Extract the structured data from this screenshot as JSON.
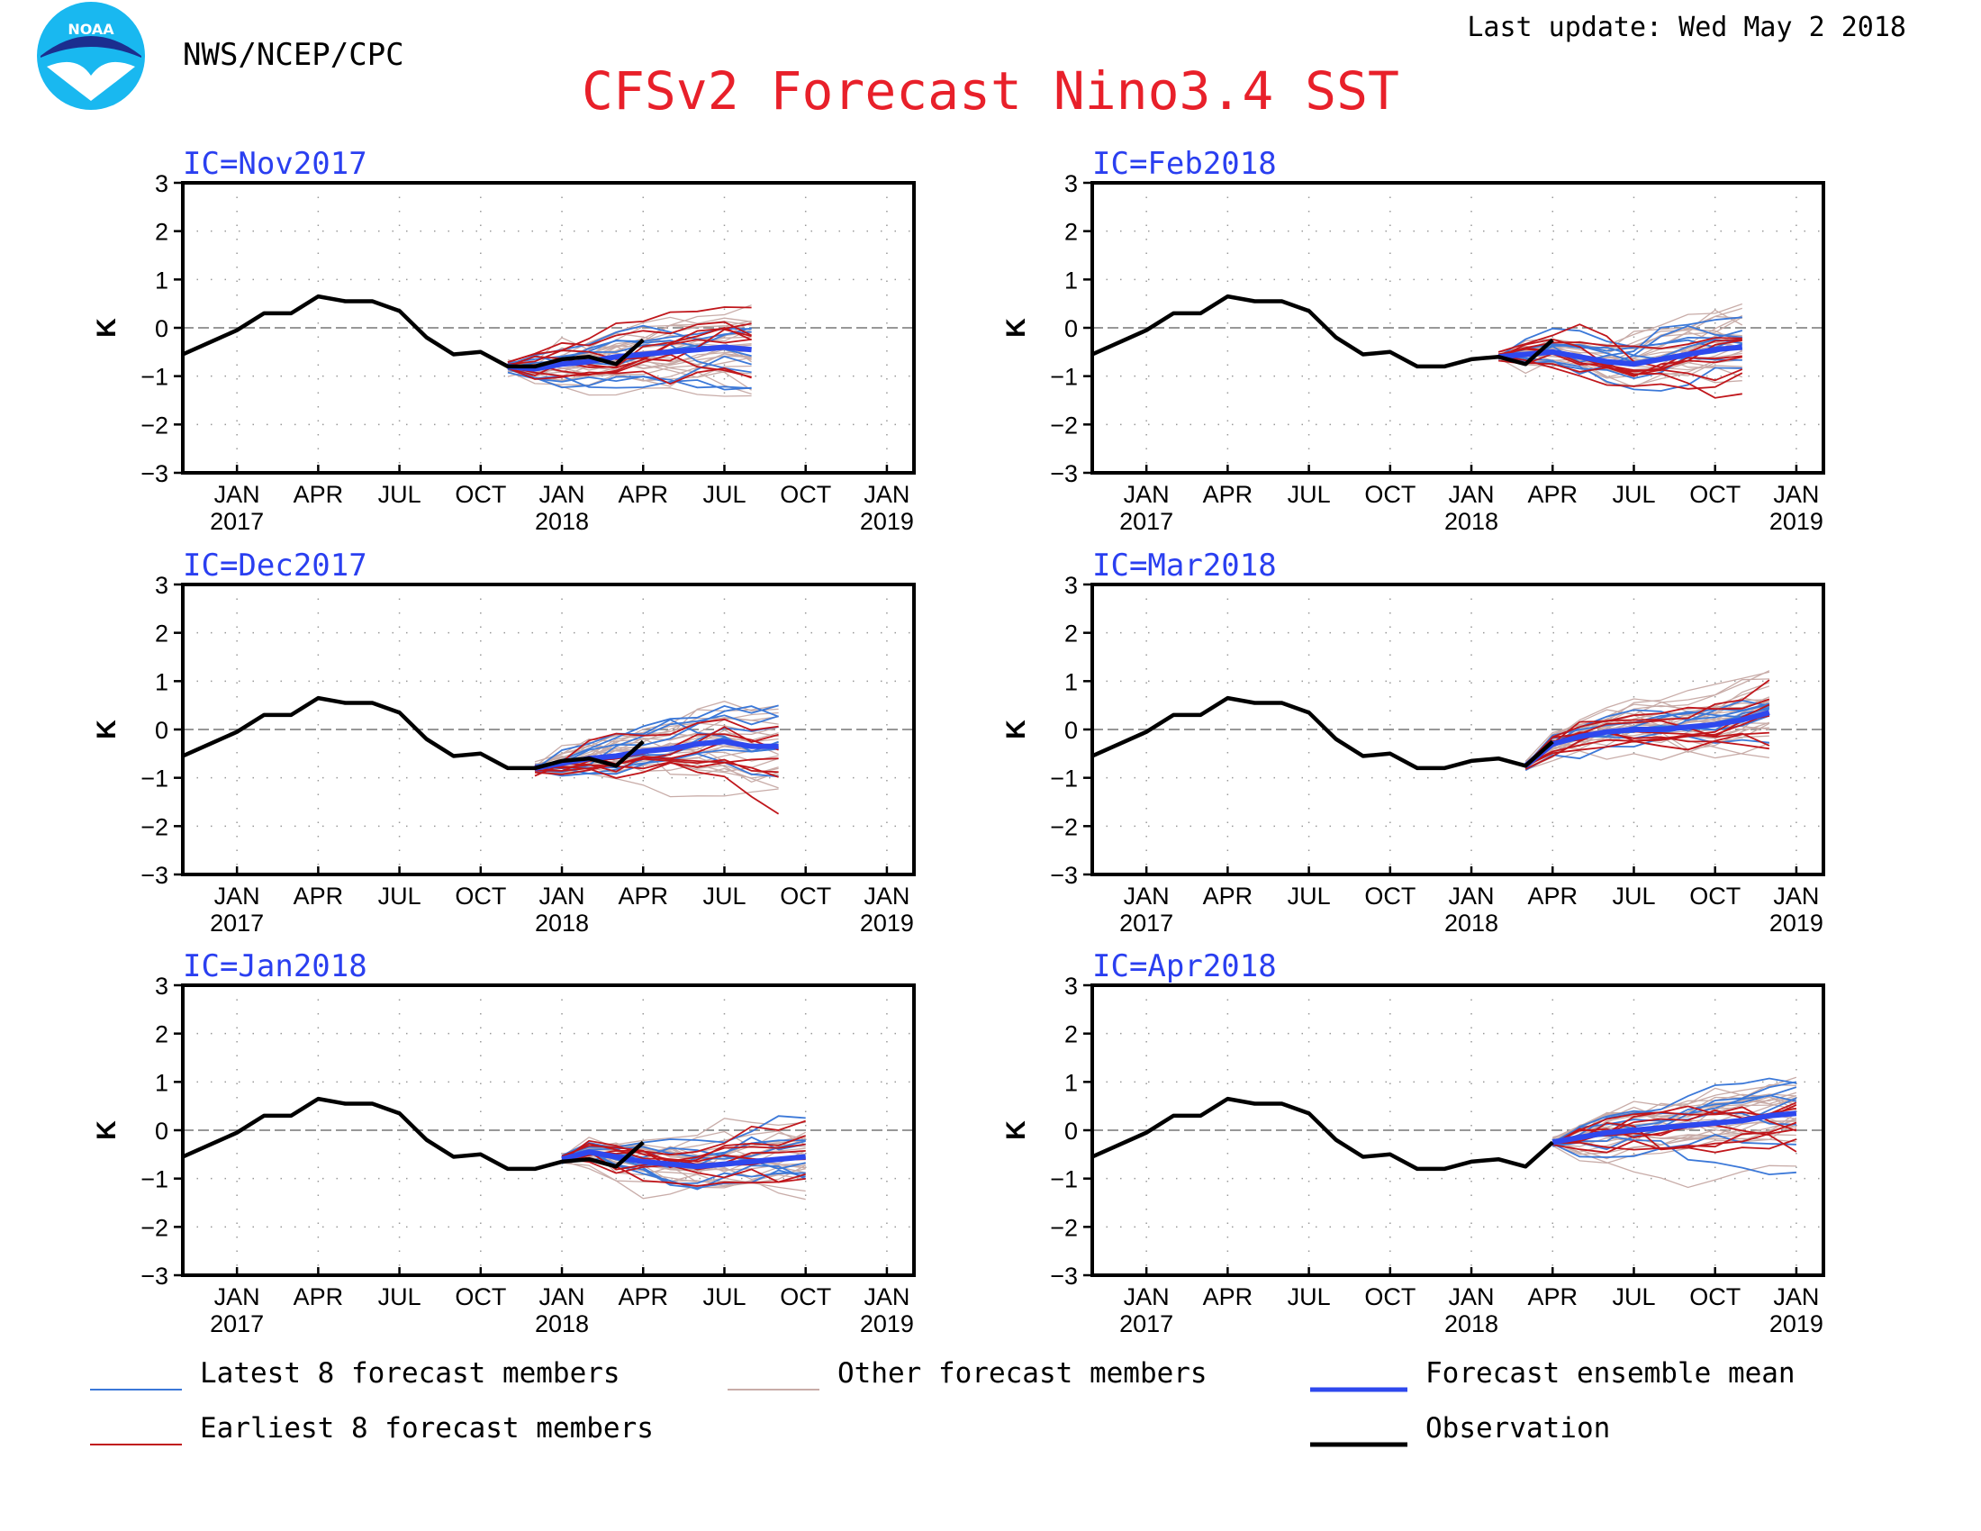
{
  "header": {
    "org": "NWS/NCEP/CPC",
    "title": "CFSv2 Forecast Nino3.4 SST",
    "last_update": "Last update: Wed May 2 2018",
    "logo_text": "NOAA"
  },
  "colors": {
    "title": "#e8202a",
    "panel_title": "#2a3ff0",
    "latest": "#3b78d8",
    "earliest": "#c0161b",
    "other": "#c8aca8",
    "mean": "#2e48ee",
    "observation": "#000000"
  },
  "axes": {
    "ylabel": "K",
    "ylim": [
      -3,
      3
    ],
    "yticks": [
      "3",
      "2",
      "1",
      "0",
      "−1",
      "−2",
      "−3"
    ],
    "xticks": [
      {
        "month": "JAN",
        "year": "2017"
      },
      {
        "month": "APR",
        "year": ""
      },
      {
        "month": "JUL",
        "year": ""
      },
      {
        "month": "OCT",
        "year": ""
      },
      {
        "month": "JAN",
        "year": "2018"
      },
      {
        "month": "APR",
        "year": ""
      },
      {
        "month": "JUL",
        "year": ""
      },
      {
        "month": "OCT",
        "year": ""
      },
      {
        "month": "JAN",
        "year": "2019"
      }
    ]
  },
  "chart_data": {
    "type": "line",
    "x_start": "2016-11",
    "x_end": "2019-02",
    "ylim": [
      -3,
      3
    ],
    "observation": {
      "x": [
        "2016-11",
        "2016-12",
        "2017-01",
        "2017-02",
        "2017-03",
        "2017-04",
        "2017-05",
        "2017-06",
        "2017-07",
        "2017-08",
        "2017-09",
        "2017-10",
        "2017-11",
        "2017-12",
        "2018-01",
        "2018-02",
        "2018-03",
        "2018-04"
      ],
      "values": [
        -0.55,
        -0.3,
        -0.05,
        0.3,
        0.3,
        0.65,
        0.55,
        0.55,
        0.35,
        -0.2,
        -0.55,
        -0.5,
        -0.8,
        -0.8,
        -0.65,
        -0.6,
        -0.75,
        -0.25
      ]
    },
    "panels": [
      {
        "title": "IC=Nov2017",
        "ic": "2017-11",
        "leads": 10,
        "mean": [
          -0.8,
          -0.85,
          -0.75,
          -0.7,
          -0.6,
          -0.55,
          -0.5,
          -0.45,
          -0.4,
          -0.45
        ],
        "spread": 0.15
      },
      {
        "title": "IC=Feb2018",
        "ic": "2018-02",
        "leads": 10,
        "mean": [
          -0.6,
          -0.55,
          -0.5,
          -0.6,
          -0.7,
          -0.75,
          -0.65,
          -0.55,
          -0.45,
          -0.4
        ],
        "spread": 0.14
      },
      {
        "title": "IC=Dec2017",
        "ic": "2017-12",
        "leads": 10,
        "mean": [
          -0.8,
          -0.7,
          -0.6,
          -0.55,
          -0.45,
          -0.4,
          -0.3,
          -0.25,
          -0.35,
          -0.35
        ],
        "spread": 0.14
      },
      {
        "title": "IC=Mar2018",
        "ic": "2018-03",
        "leads": 10,
        "mean": [
          -0.75,
          -0.3,
          -0.15,
          -0.05,
          0.0,
          0.0,
          0.05,
          0.1,
          0.2,
          0.35
        ],
        "spread": 0.14
      },
      {
        "title": "IC=Jan2018",
        "ic": "2018-01",
        "leads": 10,
        "mean": [
          -0.6,
          -0.45,
          -0.55,
          -0.65,
          -0.7,
          -0.75,
          -0.7,
          -0.65,
          -0.6,
          -0.55
        ],
        "spread": 0.14
      },
      {
        "title": "IC=Apr2018",
        "ic": "2018-04",
        "leads": 10,
        "mean": [
          -0.25,
          -0.15,
          -0.05,
          0.0,
          0.05,
          0.1,
          0.15,
          0.2,
          0.3,
          0.35
        ],
        "spread": 0.14
      }
    ]
  },
  "legend": [
    {
      "label": "Latest 8 forecast members",
      "key": "latest"
    },
    {
      "label": "Other forecast members",
      "key": "other"
    },
    {
      "label": "Forecast ensemble mean",
      "key": "mean"
    },
    {
      "label": "Earliest 8 forecast members",
      "key": "earliest"
    },
    {
      "label": "Observation",
      "key": "observation"
    }
  ]
}
